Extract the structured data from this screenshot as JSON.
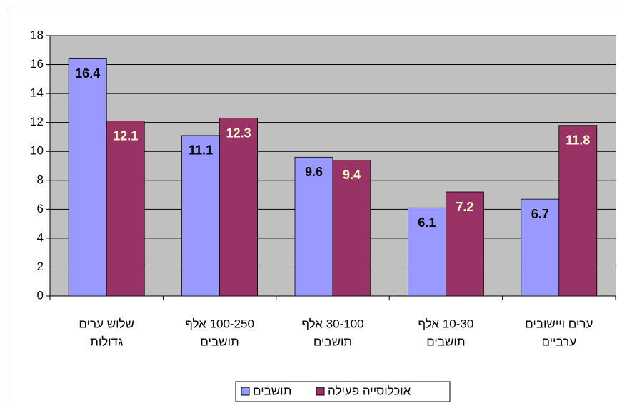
{
  "chart_data": {
    "type": "bar",
    "categories": [
      [
        "שלוש ערים",
        "גדולות"
      ],
      [
        "100-250 אלף",
        "תושבים"
      ],
      [
        "30-100 אלף",
        "תושבים"
      ],
      [
        "10-30 אלף",
        "תושבים"
      ],
      [
        "ערים ויישובים",
        "ערביים"
      ]
    ],
    "series": [
      {
        "name": "תושבים",
        "color": "#9999ff",
        "values": [
          16.4,
          11.1,
          9.6,
          6.1,
          6.7
        ]
      },
      {
        "name": "אוכלוסייה פעילה",
        "color": "#993366",
        "values": [
          12.1,
          12.3,
          9.4,
          7.2,
          11.8
        ]
      }
    ],
    "ylim": [
      0,
      18
    ],
    "yticks": [
      0,
      2,
      4,
      6,
      8,
      10,
      12,
      14,
      16,
      18
    ],
    "grid": true,
    "legend": "bottom"
  }
}
